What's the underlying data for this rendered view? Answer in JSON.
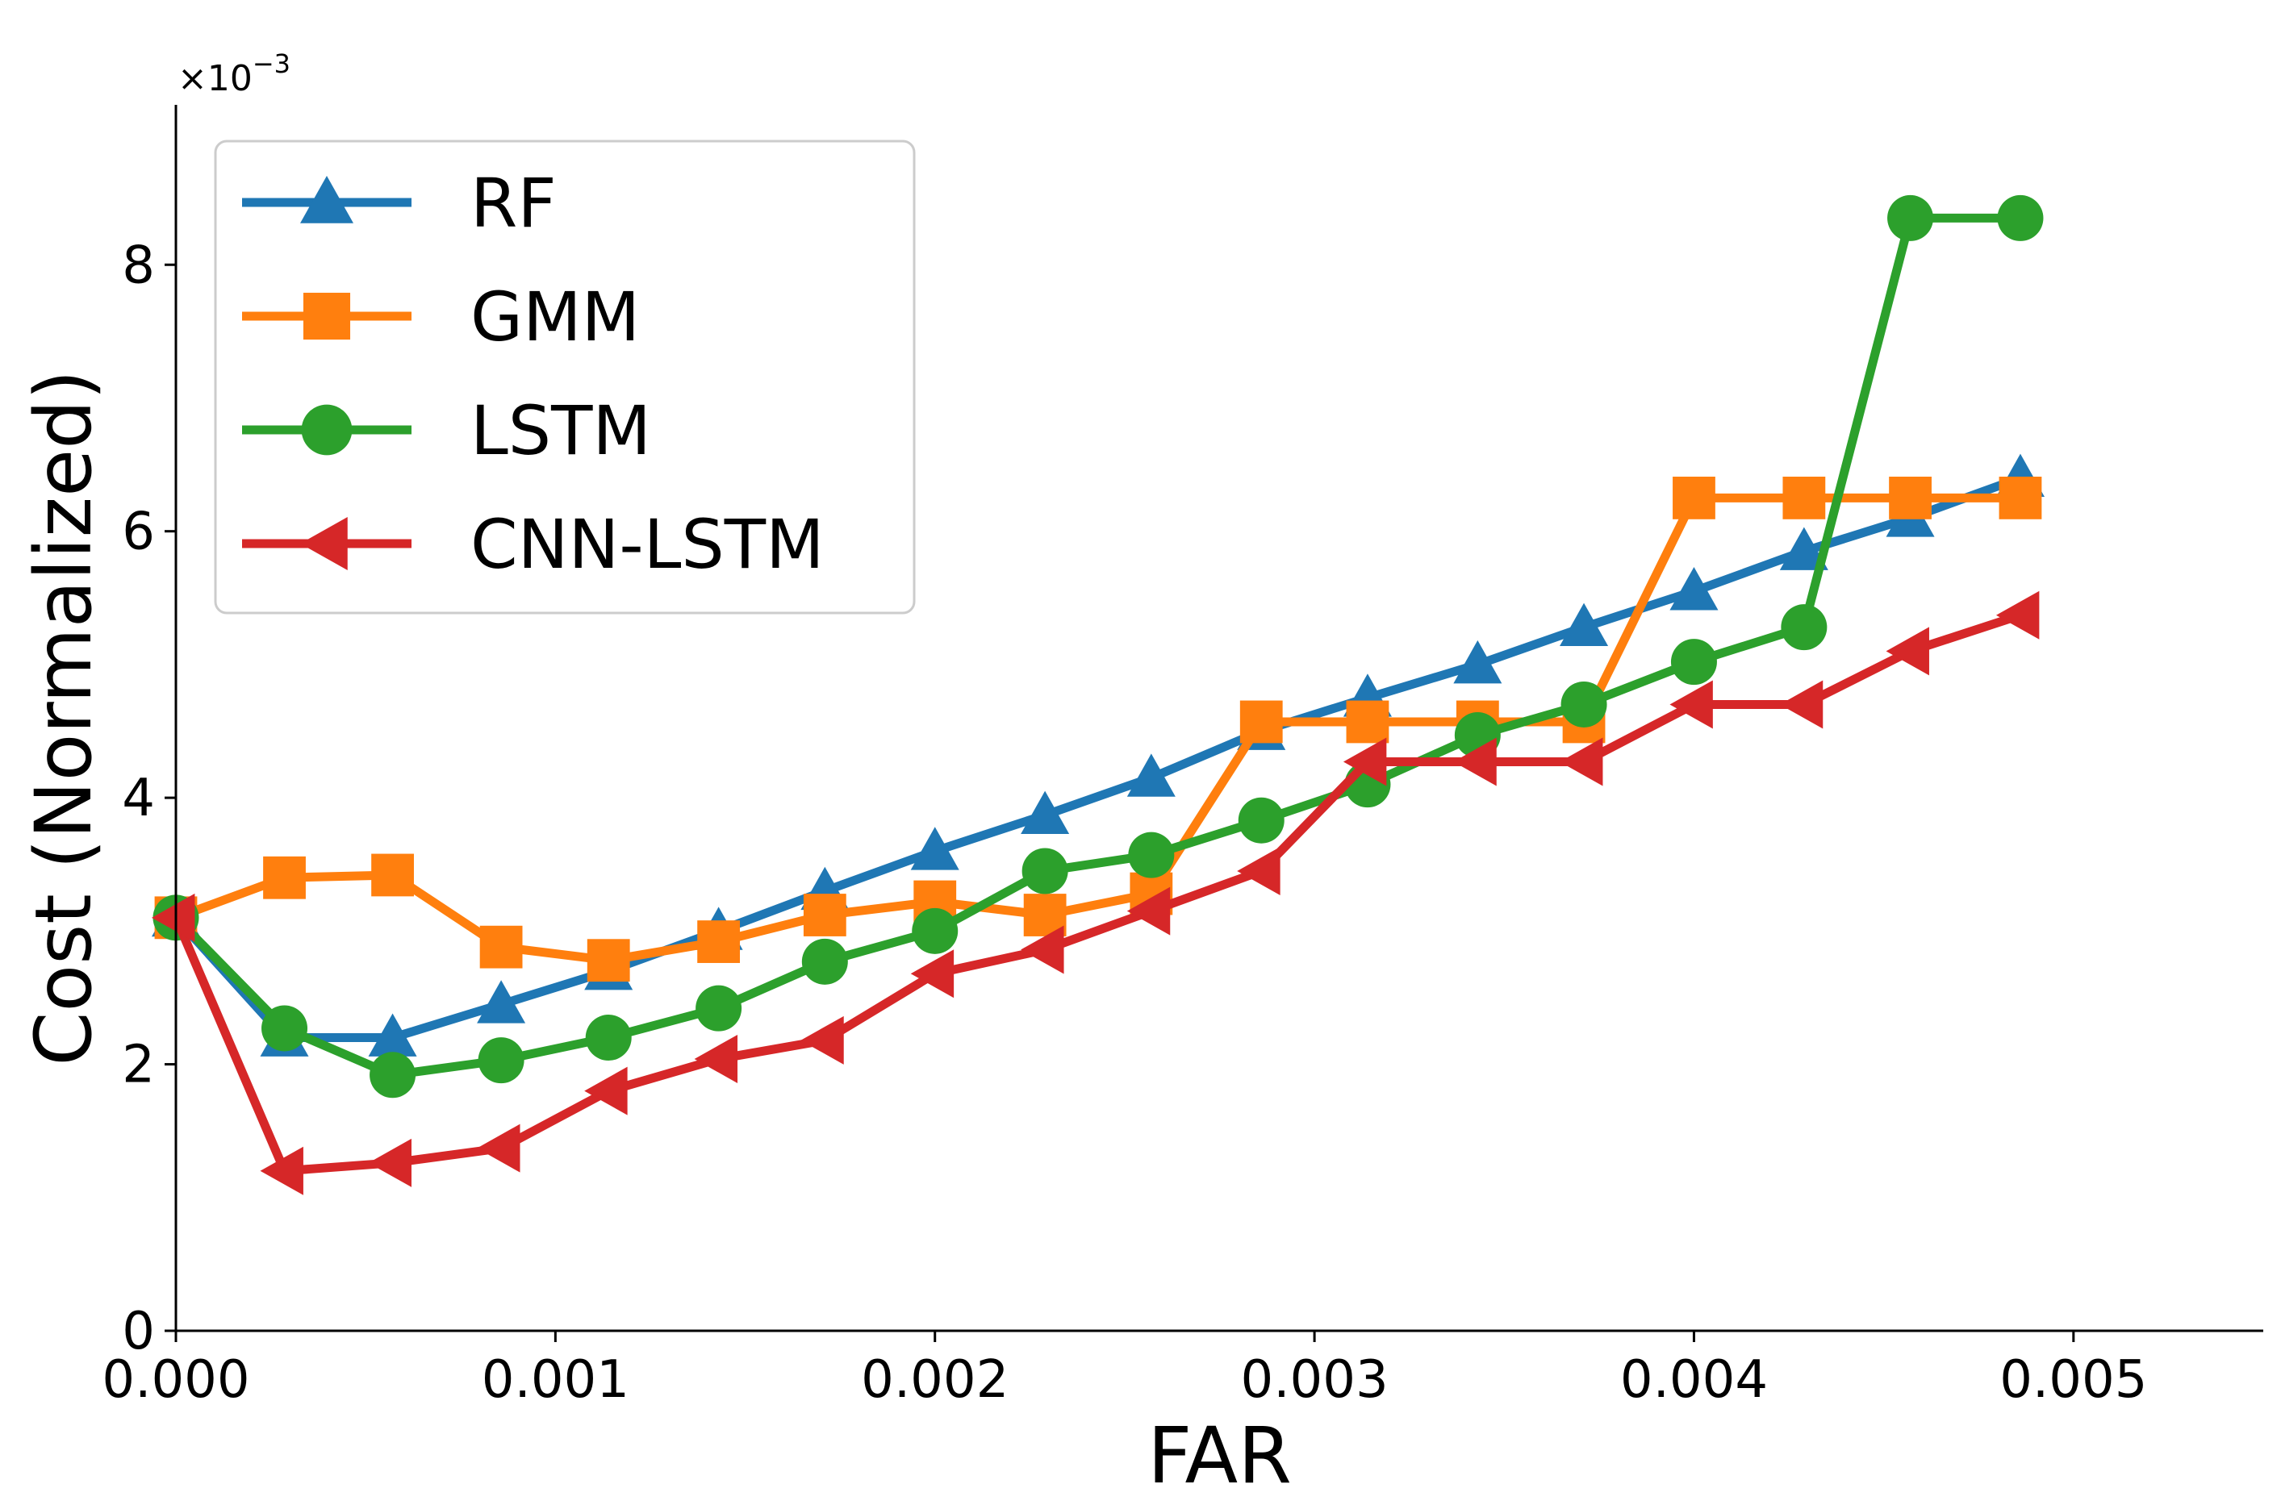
{
  "chart_data": {
    "type": "line",
    "title": "",
    "xlabel": "FAR",
    "ylabel": "Cost (Normalized)",
    "y_multiplier": "×10",
    "y_multiplier_exp": "−3",
    "xlim": [
      0.0,
      0.0055
    ],
    "ylim": [
      0.0,
      9.2
    ],
    "x_ticks": [
      0.0,
      0.001,
      0.002,
      0.003,
      0.004,
      0.005
    ],
    "x_tick_labels": [
      "0.000",
      "0.001",
      "0.002",
      "0.003",
      "0.004",
      "0.005"
    ],
    "y_ticks": [
      0,
      2,
      4,
      6,
      8
    ],
    "y_tick_labels": [
      "0",
      "2",
      "4",
      "6",
      "8"
    ],
    "legend_position": "top-left",
    "series": [
      {
        "name": "RF",
        "color": "#1f77b4",
        "marker": "triangle-up",
        "x": [
          0.0,
          0.000286,
          0.000571,
          0.000857,
          0.00114,
          0.00143,
          0.00171,
          0.002,
          0.00229,
          0.00257,
          0.00286,
          0.00314,
          0.00343,
          0.00371,
          0.004,
          0.00429,
          0.00457,
          0.00486
        ],
        "y": [
          3.1,
          2.2,
          2.2,
          2.45,
          2.7,
          3.0,
          3.3,
          3.6,
          3.87,
          4.15,
          4.5,
          4.75,
          5.0,
          5.28,
          5.55,
          5.85,
          6.1,
          6.4
        ]
      },
      {
        "name": "GMM",
        "color": "#ff7f0e",
        "marker": "square",
        "x": [
          0.0,
          0.000286,
          0.000571,
          0.000857,
          0.00114,
          0.00143,
          0.00171,
          0.002,
          0.00229,
          0.00257,
          0.00286,
          0.00314,
          0.00343,
          0.00371,
          0.004,
          0.00429,
          0.00457,
          0.00486
        ],
        "y": [
          3.1,
          3.4,
          3.42,
          2.88,
          2.78,
          2.92,
          3.12,
          3.22,
          3.12,
          3.28,
          4.57,
          4.57,
          4.57,
          4.57,
          6.25,
          6.25,
          6.25,
          6.25
        ]
      },
      {
        "name": "LSTM",
        "color": "#2ca02c",
        "marker": "circle",
        "x": [
          0.0,
          0.000286,
          0.000571,
          0.000857,
          0.00114,
          0.00143,
          0.00171,
          0.002,
          0.00229,
          0.00257,
          0.00286,
          0.00314,
          0.00343,
          0.00371,
          0.004,
          0.00429,
          0.00457,
          0.00486
        ],
        "y": [
          3.1,
          2.27,
          1.92,
          2.03,
          2.2,
          2.42,
          2.77,
          3.0,
          3.45,
          3.57,
          3.83,
          4.1,
          4.47,
          4.7,
          5.02,
          5.28,
          8.35,
          8.35
        ]
      },
      {
        "name": "CNN-LSTM",
        "color": "#d62728",
        "marker": "triangle-left",
        "x": [
          0.0,
          0.000286,
          0.000571,
          0.000857,
          0.00114,
          0.00143,
          0.00171,
          0.002,
          0.00229,
          0.00257,
          0.00286,
          0.00314,
          0.00343,
          0.00371,
          0.004,
          0.00429,
          0.00457,
          0.00486
        ],
        "y": [
          3.1,
          1.2,
          1.26,
          1.37,
          1.8,
          2.04,
          2.18,
          2.68,
          2.86,
          3.15,
          3.45,
          4.27,
          4.27,
          4.27,
          4.7,
          4.7,
          5.1,
          5.37
        ]
      }
    ]
  }
}
